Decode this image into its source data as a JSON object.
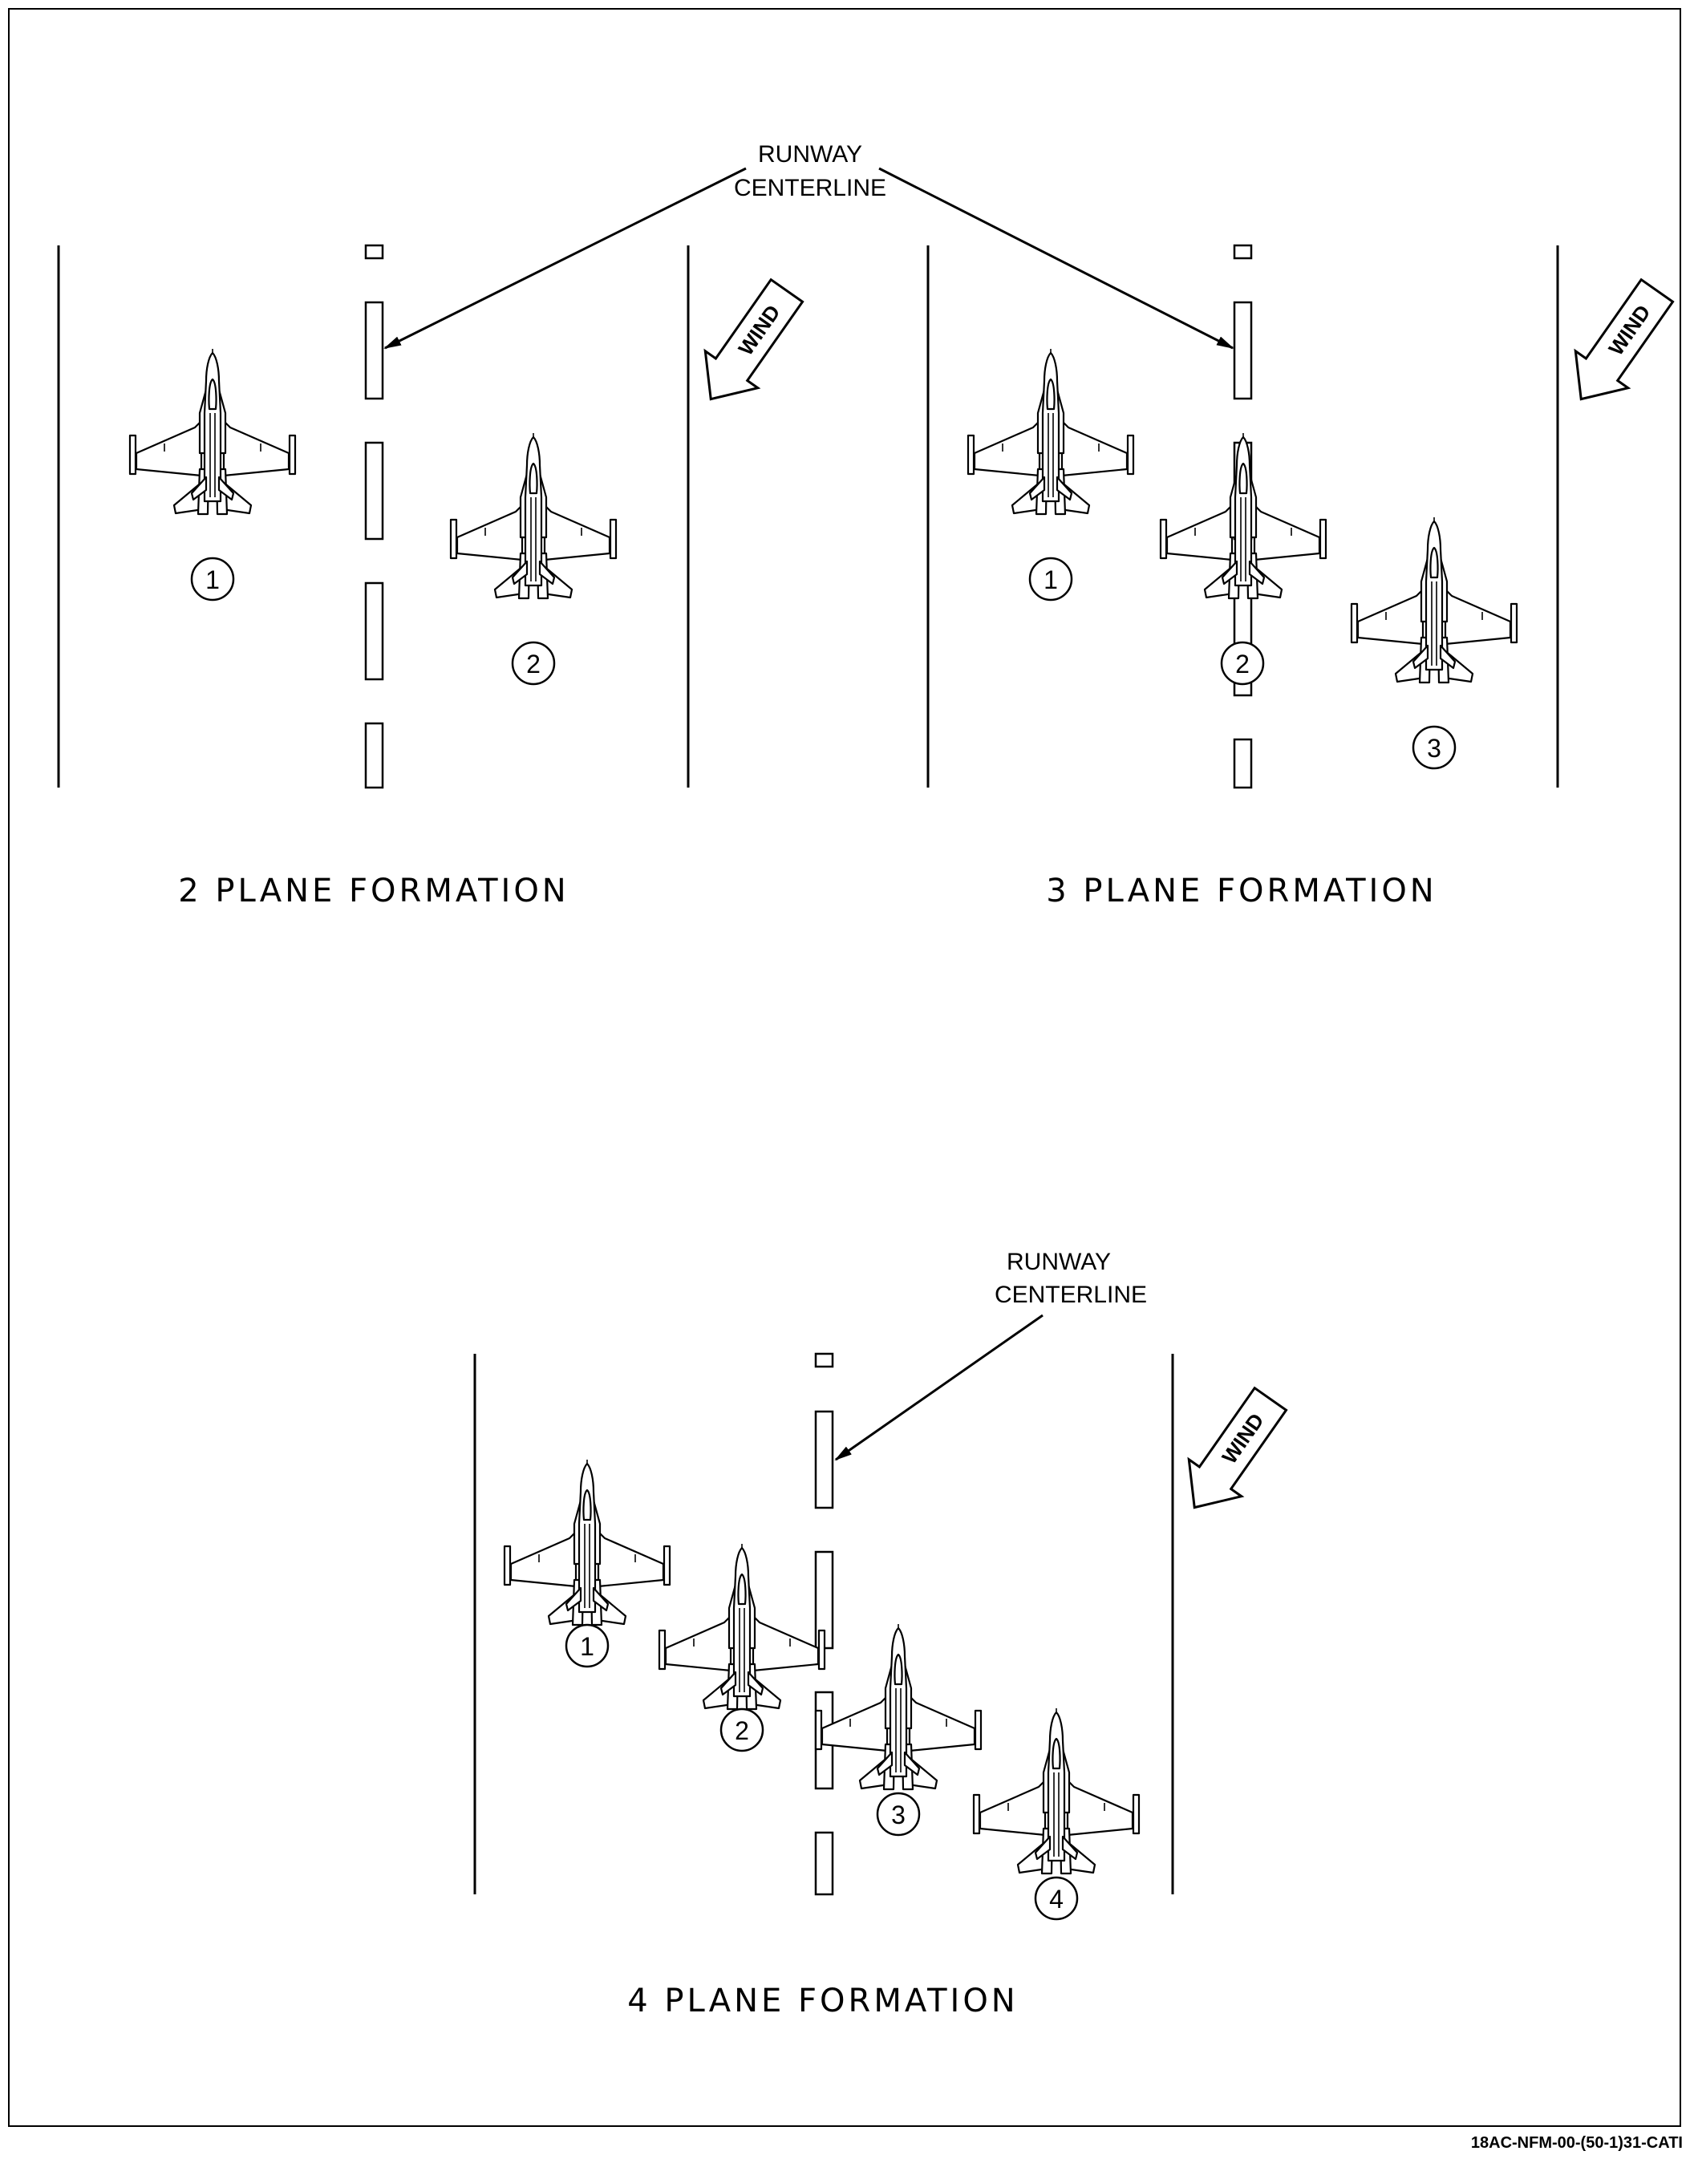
{
  "labels": {
    "runway_centerline_line1": "RUNWAY",
    "runway_centerline_line2": "CENTERLINE",
    "wind": "WIND"
  },
  "formations": [
    {
      "title": "2 PLANE FORMATION",
      "aircraft": [
        "1",
        "2"
      ]
    },
    {
      "title": "3 PLANE FORMATION",
      "aircraft": [
        "1",
        "2",
        "3"
      ]
    },
    {
      "title": "4 PLANE FORMATION",
      "aircraft": [
        "1",
        "2",
        "3",
        "4"
      ]
    }
  ],
  "figure_id": "18AC-NFM-00-(50-1)31-CATI"
}
